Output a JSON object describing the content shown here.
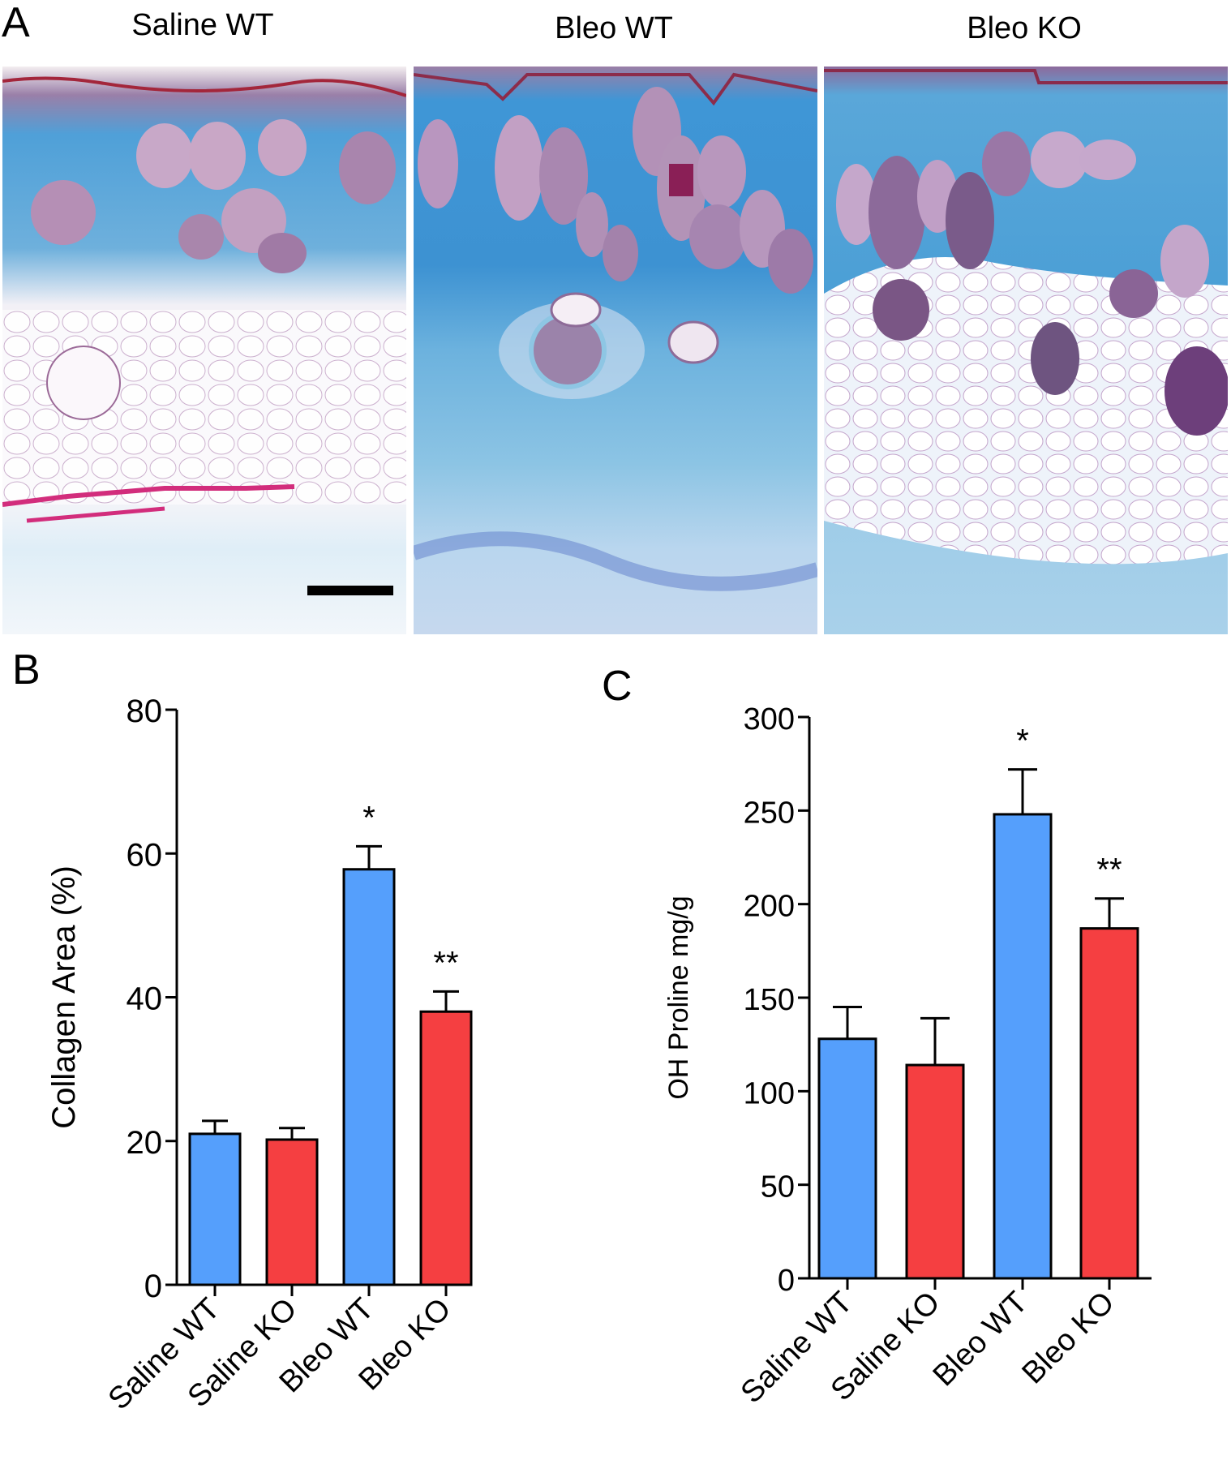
{
  "figure": {
    "panel_a": {
      "letter": "A",
      "titles": [
        "Saline WT",
        "Bleo WT",
        "Bleo KO"
      ],
      "scale_bar": true
    },
    "panel_b": {
      "letter": "B"
    },
    "panel_c": {
      "letter": "C"
    }
  },
  "colors": {
    "wt_bar": "#559ffc",
    "ko_bar": "#f53f41",
    "collagen_blue": "#3a9ad6",
    "tissue_purple": "#8a4a8c"
  },
  "chart_data": [
    {
      "panel": "B",
      "type": "bar",
      "title": "",
      "xlabel": "",
      "ylabel": "Collagen Area (%)",
      "categories": [
        "Saline WT",
        "Saline KO",
        "Bleo WT",
        "Bleo KO"
      ],
      "values": [
        21,
        20.2,
        57.8,
        38
      ],
      "errors": [
        1.8,
        1.6,
        3.2,
        2.8
      ],
      "bar_colors": [
        "#559ffc",
        "#f53f41",
        "#559ffc",
        "#f53f41"
      ],
      "annotations": [
        "",
        "",
        "*",
        "**"
      ],
      "ylim": [
        0,
        80
      ],
      "yticks": [
        0,
        20,
        40,
        60,
        80
      ],
      "grid": false,
      "legend": null
    },
    {
      "panel": "C",
      "type": "bar",
      "title": "",
      "xlabel": "",
      "ylabel": "OH Proline mg/g",
      "categories": [
        "Saline WT",
        "Saline KO",
        "Bleo WT",
        "Bleo KO"
      ],
      "values": [
        128,
        114,
        248,
        187
      ],
      "errors": [
        17,
        25,
        24,
        16
      ],
      "bar_colors": [
        "#559ffc",
        "#f53f41",
        "#559ffc",
        "#f53f41"
      ],
      "annotations": [
        "",
        "",
        "*",
        "**"
      ],
      "ylim": [
        0,
        300
      ],
      "yticks": [
        0,
        50,
        100,
        150,
        200,
        250,
        300
      ],
      "grid": false,
      "legend": null
    }
  ]
}
